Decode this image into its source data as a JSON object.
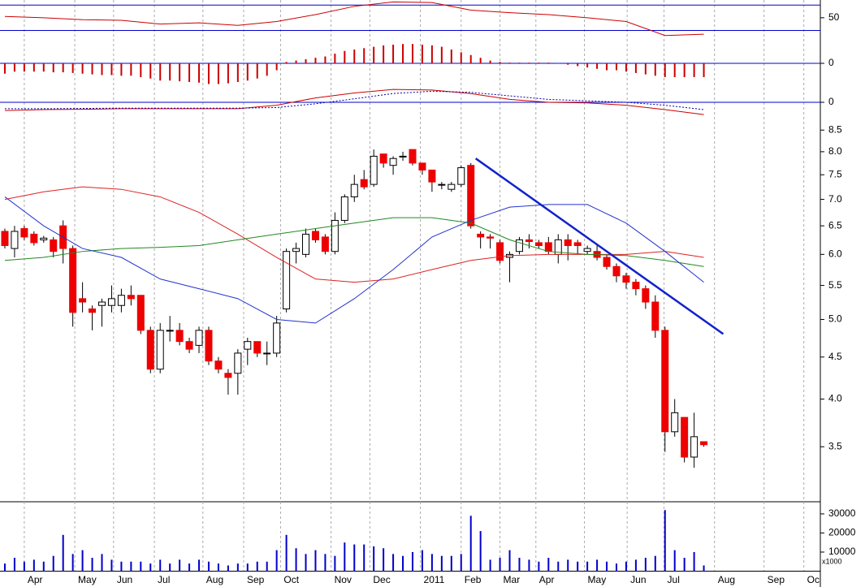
{
  "chart_data": [
    {
      "type": "line",
      "ylim": [
        5,
        78
      ],
      "yticks": [
        50
      ],
      "levels": [
        70,
        30
      ],
      "level_color": "#0000cc",
      "series": [
        {
          "color": "#cc0000",
          "x": [
            0,
            4,
            8,
            12,
            16,
            20,
            24,
            28,
            32,
            36,
            40,
            44,
            48,
            52,
            56,
            60,
            64,
            68,
            72
          ],
          "values": [
            52,
            50,
            47,
            46,
            40,
            42,
            38,
            44,
            55,
            68,
            75,
            74,
            62,
            58,
            55,
            50,
            44,
            22,
            24
          ]
        }
      ]
    },
    {
      "type": "bar",
      "ylim": [
        -0.4,
        0.4
      ],
      "yticks": [
        0
      ],
      "grid": true,
      "grid_color": "#0000cc",
      "color": "#cc0000",
      "values": [
        -0.15,
        -0.12,
        -0.12,
        -0.12,
        -0.12,
        -0.13,
        -0.13,
        -0.14,
        -0.15,
        -0.16,
        -0.17,
        -0.17,
        -0.18,
        -0.18,
        -0.2,
        -0.22,
        -0.25,
        -0.25,
        -0.26,
        -0.27,
        -0.28,
        -0.3,
        -0.3,
        -0.29,
        -0.27,
        -0.25,
        -0.22,
        -0.18,
        -0.1,
        0.02,
        0.04,
        0.06,
        0.08,
        0.1,
        0.14,
        0.18,
        0.2,
        0.22,
        0.24,
        0.26,
        0.27,
        0.28,
        0.28,
        0.27,
        0.26,
        0.24,
        0.2,
        0.16,
        0.12,
        0.08,
        0.04,
        0.02,
        0.01,
        0.01,
        0.01,
        0.01,
        0.01,
        0.0,
        -0.02,
        -0.04,
        -0.06,
        -0.08,
        -0.1,
        -0.1,
        -0.12,
        -0.14,
        -0.16,
        -0.18,
        -0.2,
        -0.2,
        -0.2,
        -0.2,
        -0.2
      ]
    },
    {
      "type": "line",
      "ylim": [
        -0.5,
        0.5
      ],
      "yticks": [
        0
      ],
      "grid": true,
      "grid_color": "#0000cc",
      "series": [
        {
          "color": "#cc0000",
          "x": [
            0,
            4,
            8,
            12,
            16,
            20,
            24,
            28,
            32,
            36,
            40,
            44,
            48,
            52,
            56,
            60,
            64,
            68,
            72
          ],
          "values": [
            -0.28,
            -0.25,
            -0.24,
            -0.22,
            -0.22,
            -0.22,
            -0.22,
            -0.1,
            0.15,
            0.32,
            0.44,
            0.42,
            0.3,
            0.1,
            0.0,
            -0.02,
            -0.1,
            -0.25,
            -0.42
          ]
        },
        {
          "color": "#0000aa",
          "style": "dotted",
          "x": [
            0,
            4,
            8,
            12,
            16,
            20,
            24,
            28,
            32,
            36,
            40,
            44,
            48,
            52,
            56,
            60,
            64,
            68,
            72
          ],
          "values": [
            -0.22,
            -0.22,
            -0.21,
            -0.2,
            -0.2,
            -0.2,
            -0.2,
            -0.18,
            -0.05,
            0.12,
            0.3,
            0.38,
            0.34,
            0.22,
            0.1,
            0.05,
            0.0,
            -0.1,
            -0.25
          ]
        }
      ]
    },
    {
      "type": "candlestick",
      "log": true,
      "ylim": [
        3.0,
        8.84
      ],
      "yticks": [
        3.5,
        {
          "value": 4,
          "label": "4.0"
        },
        4.5,
        {
          "value": 5,
          "label": "5.0"
        },
        5.5,
        {
          "value": 6,
          "label": "6.0"
        },
        6.5,
        {
          "value": 7,
          "label": "7.0"
        },
        7.5,
        {
          "value": 8,
          "label": "8.0"
        },
        8.5
      ],
      "up_color": "#ffffff",
      "down_color": "#ee0000",
      "open": [
        6.4,
        6.1,
        6.45,
        6.35,
        6.25,
        6.25,
        6.5,
        6.1,
        5.3,
        5.15,
        5.2,
        5.2,
        5.2,
        5.35,
        5.35,
        4.85,
        4.35,
        4.85,
        4.85,
        4.7,
        4.65,
        4.85,
        4.45,
        4.3,
        4.3,
        4.6,
        4.7,
        4.55,
        4.55,
        5.15,
        6.05,
        6.0,
        6.4,
        6.3,
        6.05,
        6.6,
        7.05,
        7.4,
        7.3,
        7.95,
        7.7,
        7.9,
        8.05,
        7.75,
        7.6,
        7.3,
        7.2,
        7.3,
        7.7,
        6.35,
        6.3,
        6.2,
        5.95,
        6.05,
        6.25,
        6.2,
        6.2,
        6.0,
        6.25,
        6.2,
        6.05,
        6.05,
        5.95,
        5.8,
        5.65,
        5.55,
        5.45,
        5.25,
        4.85,
        3.65,
        3.8,
        3.4,
        3.55
      ],
      "high": [
        6.45,
        6.5,
        6.5,
        6.4,
        6.32,
        6.3,
        6.6,
        6.15,
        5.55,
        5.2,
        5.3,
        5.5,
        5.45,
        5.5,
        5.35,
        4.9,
        4.95,
        5.05,
        4.95,
        4.75,
        4.9,
        4.9,
        4.5,
        4.35,
        4.6,
        4.75,
        4.7,
        4.7,
        5.05,
        6.1,
        6.2,
        6.45,
        6.45,
        6.35,
        6.75,
        7.1,
        7.5,
        7.6,
        8.05,
        7.95,
        7.9,
        8.0,
        8.05,
        7.75,
        7.6,
        7.35,
        7.35,
        7.7,
        7.75,
        6.4,
        6.35,
        6.25,
        6.05,
        6.3,
        6.35,
        6.25,
        6.3,
        6.35,
        6.35,
        6.25,
        6.15,
        6.15,
        6.0,
        5.85,
        5.7,
        5.6,
        5.5,
        5.35,
        4.9,
        4.0,
        3.8,
        3.85,
        3.55
      ],
      "low": [
        6.1,
        5.95,
        6.25,
        6.15,
        6.2,
        5.95,
        5.85,
        4.9,
        5.1,
        4.85,
        4.9,
        5.1,
        5.1,
        5.2,
        4.8,
        4.3,
        4.3,
        4.7,
        4.65,
        4.55,
        4.55,
        4.4,
        4.3,
        4.05,
        4.05,
        4.4,
        4.5,
        4.4,
        4.5,
        5.1,
        5.85,
        5.95,
        6.2,
        6.0,
        6.0,
        6.55,
        6.95,
        7.2,
        7.25,
        7.65,
        7.5,
        7.8,
        7.7,
        7.5,
        7.15,
        7.2,
        7.15,
        7.25,
        6.45,
        6.1,
        6.1,
        5.85,
        5.55,
        6.0,
        6.1,
        6.1,
        6.0,
        5.85,
        5.9,
        6.0,
        6.0,
        5.9,
        5.75,
        5.55,
        5.45,
        5.35,
        5.15,
        4.75,
        3.45,
        3.6,
        3.35,
        3.3,
        3.5
      ],
      "close": [
        6.15,
        6.4,
        6.3,
        6.2,
        6.28,
        6.05,
        6.1,
        5.1,
        5.25,
        5.1,
        5.25,
        5.3,
        5.35,
        5.3,
        4.85,
        4.35,
        4.85,
        4.85,
        4.7,
        4.6,
        4.85,
        4.45,
        4.35,
        4.25,
        4.55,
        4.7,
        4.55,
        4.55,
        4.95,
        6.05,
        6.1,
        6.35,
        6.25,
        6.05,
        6.6,
        7.05,
        7.3,
        7.25,
        7.9,
        7.75,
        7.85,
        7.9,
        7.75,
        7.6,
        7.35,
        7.3,
        7.3,
        7.65,
        6.5,
        6.3,
        6.28,
        5.9,
        6.0,
        6.25,
        6.22,
        6.15,
        6.05,
        6.25,
        6.15,
        6.15,
        6.1,
        5.95,
        5.8,
        5.65,
        5.55,
        5.45,
        5.25,
        4.85,
        3.65,
        3.85,
        3.4,
        3.6,
        3.52
      ],
      "series": [
        {
          "color": "#dd2222",
          "x": [
            0,
            4,
            8,
            12,
            16,
            20,
            24,
            28,
            32,
            36,
            40,
            44,
            48,
            52,
            56,
            60,
            64,
            68,
            72
          ],
          "values": [
            7.0,
            7.15,
            7.25,
            7.2,
            7.05,
            6.75,
            6.35,
            5.95,
            5.6,
            5.55,
            5.6,
            5.75,
            5.9,
            5.98,
            6.0,
            6.0,
            6.0,
            6.05,
            5.95
          ]
        },
        {
          "color": "#228822",
          "x": [
            0,
            4,
            8,
            12,
            16,
            20,
            24,
            28,
            32,
            36,
            40,
            44,
            48,
            52,
            56,
            60,
            64,
            68,
            72
          ],
          "values": [
            5.9,
            5.95,
            6.05,
            6.1,
            6.12,
            6.15,
            6.25,
            6.35,
            6.45,
            6.55,
            6.65,
            6.65,
            6.55,
            6.25,
            6.05,
            6.0,
            5.98,
            5.9,
            5.8
          ]
        },
        {
          "color": "#2233cc",
          "x": [
            0,
            4,
            8,
            12,
            16,
            20,
            24,
            28,
            32,
            36,
            40,
            44,
            48,
            52,
            56,
            60,
            64,
            68,
            72
          ],
          "values": [
            7.05,
            6.5,
            6.1,
            5.95,
            5.6,
            5.45,
            5.3,
            5.0,
            4.95,
            5.3,
            5.75,
            6.3,
            6.6,
            6.85,
            6.9,
            6.9,
            6.55,
            6.05,
            5.55
          ]
        },
        {
          "color": "#1122cc",
          "width": 2.5,
          "x": [
            48.5,
            74
          ],
          "values": [
            7.85,
            4.8
          ]
        }
      ]
    },
    {
      "type": "bar",
      "ylim": [
        0,
        35500
      ],
      "yticks": [
        10000,
        20000,
        30000
      ],
      "y_note": "x1000",
      "color": "#0000cc",
      "values": [
        4000,
        7000,
        5000,
        6000,
        5000,
        8000,
        19000,
        9000,
        11000,
        7000,
        9000,
        6000,
        5000,
        5000,
        5000,
        4000,
        6000,
        4000,
        6000,
        4000,
        6000,
        5000,
        4000,
        3000,
        4000,
        4000,
        5000,
        5000,
        11000,
        19000,
        12000,
        9000,
        11000,
        9000,
        8000,
        15000,
        14000,
        14000,
        13000,
        12000,
        9000,
        8000,
        10000,
        11000,
        9000,
        8000,
        8000,
        9000,
        29000,
        21000,
        6000,
        7000,
        11000,
        7000,
        6000,
        5000,
        7000,
        5000,
        6000,
        5000,
        5000,
        6000,
        5000,
        4000,
        5000,
        6000,
        7000,
        8000,
        32000,
        11000,
        7000,
        10000,
        3000
      ],
      "xlim": [
        -0.5,
        84.0
      ],
      "xticks": [
        {
          "value": 2.0,
          "label": "Apr"
        },
        {
          "value": 7.2,
          "label": "May"
        },
        {
          "value": 11.2,
          "label": "Jun"
        },
        {
          "value": 15.4,
          "label": "Jul"
        },
        {
          "value": 20.4,
          "label": "Aug"
        },
        {
          "value": 24.6,
          "label": "Sep"
        },
        {
          "value": 28.4,
          "label": "Oct"
        },
        {
          "value": 33.6,
          "label": "Nov"
        },
        {
          "value": 37.6,
          "label": "Dec"
        },
        {
          "value": 42.8,
          "label": "2011"
        },
        {
          "value": 47.0,
          "label": "Feb"
        },
        {
          "value": 51.0,
          "label": "Mar"
        },
        {
          "value": 54.7,
          "label": "Apr"
        },
        {
          "value": 59.7,
          "label": "May"
        },
        {
          "value": 64.1,
          "label": "Jun"
        },
        {
          "value": 67.9,
          "label": "Jul"
        },
        {
          "value": 73.1,
          "label": "Aug"
        },
        {
          "value": 78.2,
          "label": "Sep"
        },
        {
          "value": 82.3,
          "label": "Oc"
        }
      ]
    }
  ]
}
